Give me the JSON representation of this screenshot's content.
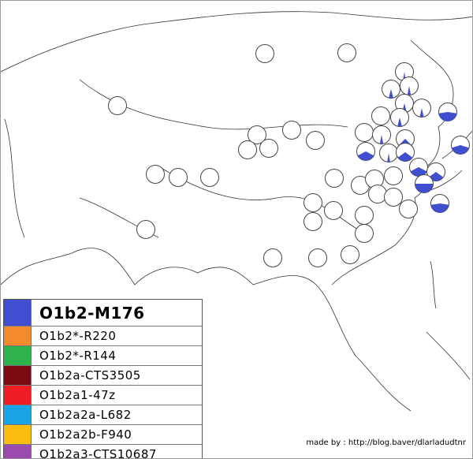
{
  "legend": [
    {
      "label": "O1b2-M176",
      "color": "#3f4fd0"
    },
    {
      "label": "O1b2*-R220",
      "color": "#f38a2e"
    },
    {
      "label": "O1b2*-R144",
      "color": "#2db34c"
    },
    {
      "label": "O1b2a-CTS3505",
      "color": "#7b0a13"
    },
    {
      "label": "O1b2a1-47z",
      "color": "#ee1c25"
    },
    {
      "label": "O1b2a2a-L682",
      "color": "#19a4e6"
    },
    {
      "label": "O1b2a2b-F940",
      "color": "#fbbd10"
    },
    {
      "label": "O1b2a3-CTS10687",
      "color": "#9b4ab0"
    }
  ],
  "pies": [
    0,
    0,
    0,
    0,
    0,
    0,
    0,
    0,
    0,
    0,
    0,
    0,
    0,
    0,
    0,
    0,
    0,
    0,
    0,
    0,
    0,
    0,
    0,
    0,
    0,
    0,
    0,
    0,
    0,
    5,
    8,
    6,
    8,
    7,
    6,
    8,
    5,
    45,
    40,
    35,
    25,
    30,
    35,
    30,
    50,
    45
  ],
  "credit": "made by : http://blog.baver/dlarladudtnr"
}
